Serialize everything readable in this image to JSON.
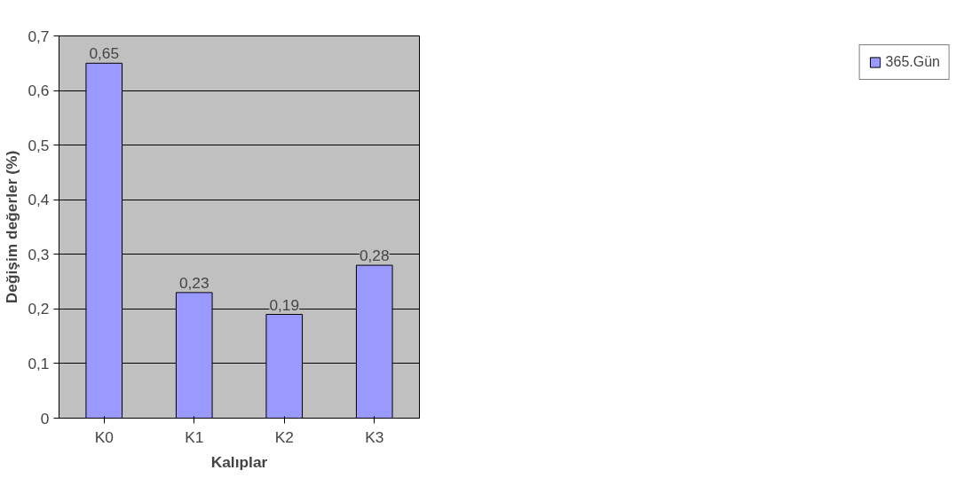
{
  "chart_data": {
    "type": "bar",
    "xlabel": "Kalıplar",
    "ylabel": "Değişim değerler (%)",
    "categories": [
      "K0",
      "K1",
      "K2",
      "K3"
    ],
    "series": [
      {
        "name": "365.Gün",
        "color": "#9999ff",
        "values": [
          0.65,
          0.23,
          0.19,
          0.28
        ],
        "value_labels": [
          "0,65",
          "0,23",
          "0,19",
          "0,28"
        ]
      }
    ],
    "ylim": [
      0,
      0.7
    ],
    "yticks": [
      {
        "value": 0,
        "label": "0"
      },
      {
        "value": 0.1,
        "label": "0,1"
      },
      {
        "value": 0.2,
        "label": "0,2"
      },
      {
        "value": 0.3,
        "label": "0,3"
      },
      {
        "value": 0.4,
        "label": "0,4"
      },
      {
        "value": 0.5,
        "label": "0,5"
      },
      {
        "value": 0.6,
        "label": "0,6"
      },
      {
        "value": 0.7,
        "label": "0,7"
      }
    ],
    "grid": "y",
    "legend": "right"
  }
}
